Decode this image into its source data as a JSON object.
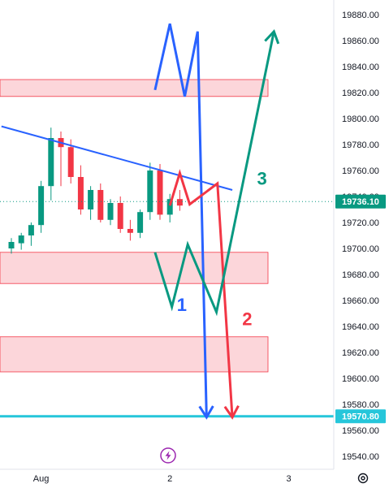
{
  "chart_data": {
    "type": "candlestick",
    "y_axis": {
      "ticks": [
        19880,
        19860,
        19840,
        19820,
        19800,
        19780,
        19760,
        19740,
        19720,
        19700,
        19680,
        19660,
        19640,
        19620,
        19600,
        19580,
        19560,
        19540
      ],
      "tick_labels": [
        "19880.00",
        "19860.00",
        "19840.00",
        "19820.00",
        "19800.00",
        "19780.00",
        "19760.00",
        "19740.00",
        "19720.00",
        "19700.00",
        "19680.00",
        "19660.00",
        "19640.00",
        "19620.00",
        "19600.00",
        "19580.00",
        "19560.00",
        "19540.00"
      ],
      "ylim": [
        19533,
        19887
      ]
    },
    "x_axis": {
      "ticks": [
        {
          "label": "Aug",
          "index": 3
        },
        {
          "label": "2",
          "index": 16
        },
        {
          "label": "3",
          "index": 28
        }
      ],
      "xlim": [
        -1,
        35.7
      ]
    },
    "candles": [
      {
        "o": 19700,
        "h": 19708,
        "l": 19696,
        "c": 19705
      },
      {
        "o": 19704,
        "h": 19712,
        "l": 19699,
        "c": 19710
      },
      {
        "o": 19710,
        "h": 19720,
        "l": 19702,
        "c": 19718
      },
      {
        "o": 19718,
        "h": 19752,
        "l": 19712,
        "c": 19748
      },
      {
        "o": 19748,
        "h": 19793,
        "l": 19737,
        "c": 19785
      },
      {
        "o": 19785,
        "h": 19790,
        "l": 19748,
        "c": 19778
      },
      {
        "o": 19778,
        "h": 19784,
        "l": 19750,
        "c": 19755
      },
      {
        "o": 19755,
        "h": 19764,
        "l": 19726,
        "c": 19730
      },
      {
        "o": 19730,
        "h": 19748,
        "l": 19722,
        "c": 19745
      },
      {
        "o": 19745,
        "h": 19750,
        "l": 19720,
        "c": 19722
      },
      {
        "o": 19722,
        "h": 19738,
        "l": 19718,
        "c": 19735
      },
      {
        "o": 19735,
        "h": 19740,
        "l": 19712,
        "c": 19715
      },
      {
        "o": 19715,
        "h": 19722,
        "l": 19706,
        "c": 19712
      },
      {
        "o": 19712,
        "h": 19730,
        "l": 19708,
        "c": 19728
      },
      {
        "o": 19728,
        "h": 19766,
        "l": 19722,
        "c": 19760
      },
      {
        "o": 19760,
        "h": 19765,
        "l": 19722,
        "c": 19726
      },
      {
        "o": 19726,
        "h": 19742,
        "l": 19720,
        "c": 19738
      },
      {
        "o": 19738,
        "h": 19745,
        "l": 19729,
        "c": 19733
      }
    ],
    "zones": [
      {
        "top": 19830,
        "bottom": 19817
      },
      {
        "top": 19697,
        "bottom": 19673
      },
      {
        "top": 19632,
        "bottom": 19605
      }
    ],
    "trendline": {
      "from": {
        "x": -1,
        "y": 19794
      },
      "to": {
        "x": 22.3,
        "y": 19745
      },
      "color": "#2962ff"
    },
    "horizontal_level": {
      "value": 19570.8,
      "color": "#26c6da"
    },
    "current_price": {
      "value": 19736.1,
      "label": "19736.10"
    },
    "target_price": {
      "value": 19570.8,
      "label": "19570.80"
    },
    "scenarios": [
      {
        "label": "1",
        "color": "#2962ff",
        "label_at": {
          "x": 17.2,
          "y": 19652
        },
        "points": [
          [
            14.5,
            19822
          ],
          [
            16,
            19873
          ],
          [
            17.5,
            19817
          ],
          [
            18.8,
            19867
          ],
          [
            19.7,
            19570
          ]
        ],
        "arrow": "down"
      },
      {
        "label": "2",
        "color": "#f23645",
        "label_at": {
          "x": 23.8,
          "y": 19641
        },
        "points": [
          [
            16,
            19733
          ],
          [
            17,
            19758
          ],
          [
            18,
            19734
          ],
          [
            20.8,
            19750
          ],
          [
            22.3,
            19570
          ]
        ],
        "arrow": "down"
      },
      {
        "label": "3",
        "color": "#089981",
        "label_at": {
          "x": 25.3,
          "y": 19749
        },
        "points": [
          [
            14.5,
            19697
          ],
          [
            16.2,
            19655
          ],
          [
            17.8,
            19703
          ],
          [
            20.7,
            19651
          ],
          [
            26.5,
            19867
          ]
        ],
        "arrow": "up"
      }
    ],
    "colors": {
      "up": "#089981",
      "down": "#f23645",
      "zone_fill": "#fcd6da",
      "zone_stroke": "#f23645",
      "grid": "#ffffff",
      "axis_text": "#131722"
    },
    "lightning_icon_color": "#9c27b0"
  }
}
